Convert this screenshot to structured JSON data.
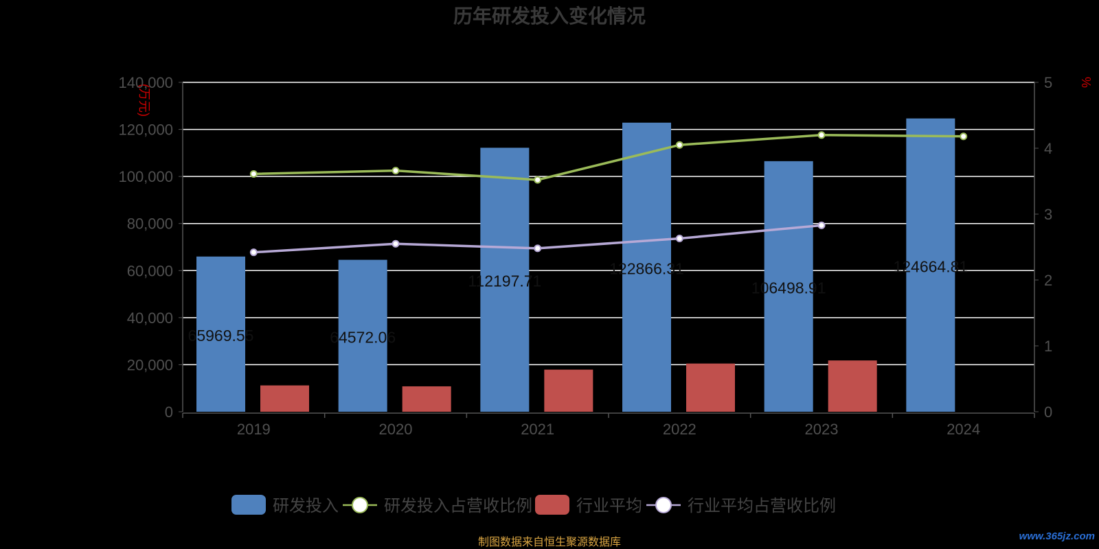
{
  "chart_data": {
    "type": "bar",
    "title": "历年研发投入变化情况",
    "categories": [
      "2019",
      "2020",
      "2021",
      "2022",
      "2023",
      "2024"
    ],
    "y_left": {
      "label": "(万元)",
      "ylim": [
        0,
        140000
      ],
      "ticks": [
        "0",
        "20,000",
        "40,000",
        "60,000",
        "80,000",
        "100,000",
        "120,000",
        "140,000"
      ]
    },
    "y_right": {
      "label": "%",
      "ylim": [
        0,
        5
      ],
      "ticks": [
        "0",
        "1",
        "2",
        "3",
        "4",
        "5"
      ]
    },
    "series": [
      {
        "name": "研发投入",
        "kind": "bar",
        "axis": "left",
        "color": "#4f81bd",
        "values": [
          65969.55,
          64572.06,
          112197.71,
          122866.31,
          106498.91,
          124664.81
        ],
        "labels": [
          "65969.55",
          "64572.06",
          "112197.71",
          "122866.31",
          "106498.91",
          "124664.81"
        ]
      },
      {
        "name": "研发投入占营收比例",
        "kind": "line",
        "axis": "right",
        "color": "#9bbb59",
        "values": [
          3.61,
          3.66,
          3.52,
          4.05,
          4.2,
          4.18
        ]
      },
      {
        "name": "行业平均",
        "kind": "bar",
        "axis": "left",
        "color": "#c0504d",
        "values": [
          11200,
          10800,
          17900,
          20500,
          21800,
          null
        ]
      },
      {
        "name": "行业平均占营收比例",
        "kind": "line",
        "axis": "right",
        "color": "#b7a9d6",
        "values": [
          2.42,
          2.55,
          2.48,
          2.63,
          2.83,
          null
        ]
      }
    ],
    "grid": true,
    "legend_position": "bottom"
  },
  "footer": {
    "source": "制图数据来自恒生聚源数据库",
    "watermark": "www.365jz.com"
  }
}
